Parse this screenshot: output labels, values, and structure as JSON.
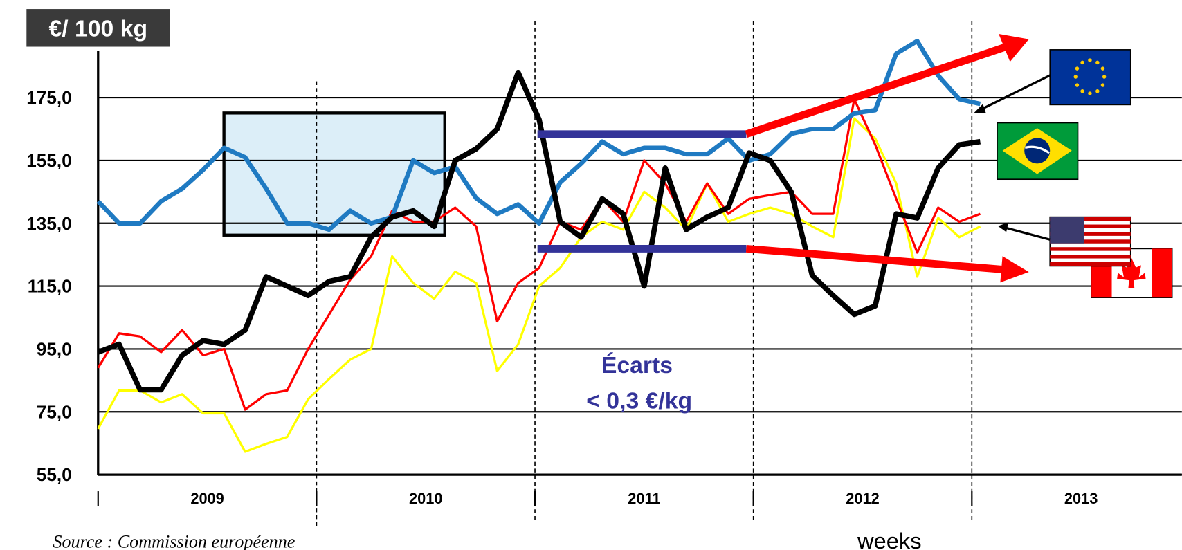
{
  "chart_data": {
    "type": "line",
    "unit_label": "€/ 100 kg",
    "xlabel": "weeks",
    "source": "Source : Commission européenne",
    "annotations": [
      "Écarts",
      "< 0,3 €/kg"
    ],
    "x": [
      0,
      5,
      10,
      15,
      20,
      25,
      30,
      35,
      40,
      45,
      50,
      55,
      60,
      65,
      70,
      75,
      80,
      85,
      90,
      95,
      100,
      105,
      110,
      115,
      120,
      125,
      130,
      135,
      140,
      145,
      150,
      155,
      160,
      165,
      170,
      175,
      180,
      185,
      190,
      195,
      200,
      205,
      210
    ],
    "xlim": [
      0,
      258
    ],
    "xtick_marks": [
      0,
      52,
      104,
      156,
      208
    ],
    "xticks": [
      {
        "value": 26,
        "label": "2009"
      },
      {
        "value": 78,
        "label": "2010"
      },
      {
        "value": 130,
        "label": "2011"
      },
      {
        "value": 182,
        "label": "2012"
      },
      {
        "value": 234,
        "label": "2013"
      }
    ],
    "ylim": [
      55,
      190
    ],
    "yticks": [
      {
        "value": 55,
        "label": "55,0"
      },
      {
        "value": 75,
        "label": "75,0"
      },
      {
        "value": 95,
        "label": "95,0"
      },
      {
        "value": 115,
        "label": "115,0"
      },
      {
        "value": 135,
        "label": "135,0"
      },
      {
        "value": 155,
        "label": "155,0"
      },
      {
        "value": 175,
        "label": "175,0"
      }
    ],
    "grid": true,
    "series": [
      {
        "color": "#ffff00",
        "values": [
          69.6,
          81.8,
          81.8,
          78,
          80.6,
          74.5,
          74.5,
          62.3,
          64.8,
          67,
          79,
          85.5,
          91.6,
          95,
          124.5,
          116,
          111,
          119.6,
          116,
          88,
          96.5,
          115,
          120.8,
          130.6,
          135.5,
          133,
          145,
          140,
          133,
          147.7,
          135.5,
          138,
          140,
          138,
          134,
          130.6,
          168.4,
          162,
          147.7,
          118,
          136.7,
          130.6,
          134
        ]
      },
      {
        "color": "#ff0000",
        "values": [
          89,
          100,
          99,
          94,
          101,
          93,
          95,
          75.7,
          80.6,
          81.8,
          95,
          106,
          117,
          124.5,
          139,
          135.5,
          135.5,
          140,
          134,
          103.8,
          116,
          120.8,
          135.5,
          133,
          142.8,
          135.5,
          155,
          147.7,
          135.5,
          147.7,
          138,
          142.8,
          144,
          145,
          138,
          138,
          174.5,
          160,
          142.8,
          125.7,
          140,
          135.5,
          138
        ]
      },
      {
        "color": "#1f7ac2",
        "values": [
          142,
          135,
          135,
          142,
          146,
          152,
          159,
          156,
          146,
          135,
          135,
          133,
          139,
          135,
          137,
          155,
          151,
          153,
          143,
          138,
          141,
          135,
          148,
          154,
          161,
          157,
          159,
          159,
          157,
          157,
          162,
          155,
          157,
          163.5,
          165,
          165,
          170,
          171,
          189,
          193,
          182,
          174.5,
          173
        ]
      },
      {
        "color": "#000000",
        "values": [
          94,
          96.5,
          82,
          82,
          93,
          97.7,
          96.5,
          101,
          118,
          115,
          112,
          116.5,
          118,
          130.6,
          137,
          139,
          134,
          155,
          158.7,
          165,
          183,
          168,
          135.5,
          130.6,
          142.8,
          138,
          115,
          152.6,
          133,
          137,
          140,
          157.4,
          155,
          145,
          118.4,
          112,
          106,
          108.7,
          138,
          136.7,
          152.6,
          160,
          161
        ]
      }
    ]
  }
}
